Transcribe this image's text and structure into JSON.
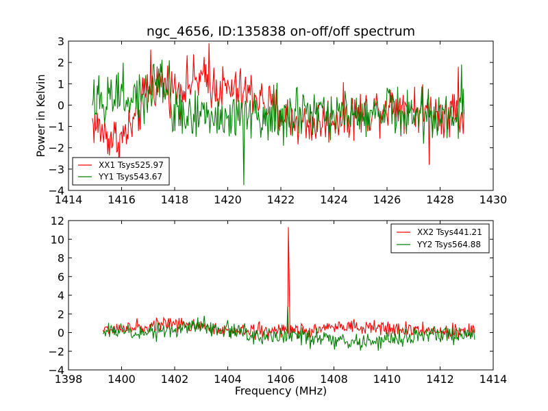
{
  "chart_data": [
    {
      "type": "line",
      "title": "ngc_4656, ID:135838 on-off/off spectrum",
      "xlabel": "",
      "ylabel": "Power in Kelvin",
      "xlim": [
        1414,
        1430
      ],
      "ylim": [
        -4,
        3
      ],
      "xticks": [
        "1414",
        "1416",
        "1418",
        "1420",
        "1422",
        "1424",
        "1426",
        "1428",
        "1430"
      ],
      "yticks": [
        "-4",
        "-3",
        "-2",
        "-1",
        "0",
        "1",
        "2",
        "3"
      ],
      "legend_position": "lower-left",
      "series": [
        {
          "name": "XX1 Tsys525.97",
          "color": "#ff0000",
          "x_start": 1414.9,
          "x_end": 1428.9,
          "anchors": [
            [
              1414.9,
              -0.8
            ],
            [
              1415.5,
              -1.5
            ],
            [
              1416.0,
              -1.6
            ],
            [
              1416.5,
              -0.8
            ],
            [
              1417.0,
              0.8
            ],
            [
              1417.5,
              1.1
            ],
            [
              1418.0,
              0.7
            ],
            [
              1418.5,
              1.0
            ],
            [
              1419.0,
              1.2
            ],
            [
              1419.5,
              0.9
            ],
            [
              1420.0,
              0.7
            ],
            [
              1420.5,
              0.6
            ],
            [
              1421.0,
              0.5
            ],
            [
              1421.5,
              0.0
            ],
            [
              1422.0,
              -0.4
            ],
            [
              1422.5,
              -0.7
            ],
            [
              1423.0,
              -0.9
            ],
            [
              1423.5,
              -0.8
            ],
            [
              1424.0,
              -0.6
            ],
            [
              1424.5,
              -0.5
            ],
            [
              1425.0,
              -0.4
            ],
            [
              1425.5,
              -0.2
            ],
            [
              1426.0,
              0.0
            ],
            [
              1426.5,
              0.0
            ],
            [
              1427.0,
              -0.1
            ],
            [
              1427.5,
              -0.3
            ],
            [
              1428.0,
              -0.4
            ],
            [
              1428.5,
              -0.2
            ],
            [
              1428.9,
              -0.6
            ]
          ],
          "noise": 0.55,
          "spikes": [
            [
              1417.1,
              2.6
            ],
            [
              1419.3,
              2.9
            ],
            [
              1427.6,
              -2.8
            ],
            [
              1428.7,
              1.8
            ]
          ]
        },
        {
          "name": "YY1 Tsys543.67",
          "color": "#008000",
          "x_start": 1414.9,
          "x_end": 1428.9,
          "anchors": [
            [
              1414.9,
              0.2
            ],
            [
              1415.5,
              0.4
            ],
            [
              1416.0,
              0.3
            ],
            [
              1416.5,
              0.4
            ],
            [
              1417.0,
              0.6
            ],
            [
              1417.5,
              0.9
            ],
            [
              1418.0,
              -0.2
            ],
            [
              1418.5,
              -0.7
            ],
            [
              1419.0,
              -0.5
            ],
            [
              1419.5,
              -0.6
            ],
            [
              1420.0,
              -0.7
            ],
            [
              1420.5,
              -0.6
            ],
            [
              1421.0,
              -0.4
            ],
            [
              1421.5,
              -0.5
            ],
            [
              1422.0,
              -0.6
            ],
            [
              1422.5,
              -0.4
            ],
            [
              1423.0,
              -0.3
            ],
            [
              1423.5,
              -0.5
            ],
            [
              1424.0,
              -0.4
            ],
            [
              1424.5,
              -0.3
            ],
            [
              1425.0,
              -0.3
            ],
            [
              1425.5,
              -0.3
            ],
            [
              1426.0,
              -0.1
            ],
            [
              1426.5,
              -0.3
            ],
            [
              1427.0,
              -0.4
            ],
            [
              1427.5,
              -0.3
            ],
            [
              1428.0,
              -0.5
            ],
            [
              1428.5,
              -0.4
            ],
            [
              1428.9,
              -0.3
            ]
          ],
          "noise": 0.6,
          "spikes": [
            [
              1420.6,
              -3.75
            ],
            [
              1417.8,
              2.1
            ],
            [
              1428.8,
              1.9
            ]
          ]
        }
      ]
    },
    {
      "type": "line",
      "title": "",
      "xlabel": "Frequency (MHz)",
      "ylabel": "",
      "xlim": [
        1398,
        1414
      ],
      "ylim": [
        -4,
        12
      ],
      "xticks": [
        "1398",
        "1400",
        "1402",
        "1404",
        "1406",
        "1408",
        "1410",
        "1412",
        "1414"
      ],
      "yticks": [
        "-4",
        "-2",
        "0",
        "2",
        "4",
        "6",
        "8",
        "10",
        "12"
      ],
      "legend_position": "upper-right",
      "series": [
        {
          "name": "XX2 Tsys441.21",
          "color": "#ff0000",
          "x_start": 1399.3,
          "x_end": 1413.3,
          "anchors": [
            [
              1399.3,
              0.2
            ],
            [
              1400.0,
              0.4
            ],
            [
              1401.0,
              0.7
            ],
            [
              1402.0,
              0.9
            ],
            [
              1403.0,
              0.7
            ],
            [
              1404.0,
              0.2
            ],
            [
              1405.0,
              0.1
            ],
            [
              1406.0,
              0.1
            ],
            [
              1406.5,
              0.2
            ],
            [
              1407.0,
              0.3
            ],
            [
              1408.0,
              0.6
            ],
            [
              1409.0,
              0.5
            ],
            [
              1410.0,
              0.3
            ],
            [
              1411.0,
              0.3
            ],
            [
              1412.0,
              0.2
            ],
            [
              1413.3,
              0.1
            ]
          ],
          "noise": 0.4,
          "spikes": [
            [
              1406.27,
              11.3
            ],
            [
              1406.31,
              6.0
            ]
          ]
        },
        {
          "name": "YY2 Tsys564.88",
          "color": "#008000",
          "x_start": 1399.3,
          "x_end": 1413.3,
          "anchors": [
            [
              1399.3,
              0.1
            ],
            [
              1400.0,
              0.2
            ],
            [
              1401.0,
              0.0
            ],
            [
              1402.0,
              0.4
            ],
            [
              1403.0,
              0.7
            ],
            [
              1404.0,
              0.3
            ],
            [
              1405.0,
              -0.2
            ],
            [
              1406.0,
              -0.3
            ],
            [
              1407.0,
              -0.5
            ],
            [
              1408.0,
              -0.8
            ],
            [
              1409.0,
              -1.0
            ],
            [
              1410.0,
              -0.9
            ],
            [
              1411.0,
              -0.5
            ],
            [
              1412.0,
              -0.3
            ],
            [
              1413.3,
              -0.2
            ]
          ],
          "noise": 0.45,
          "spikes": [
            [
              1406.26,
              2.8
            ]
          ]
        }
      ]
    }
  ]
}
